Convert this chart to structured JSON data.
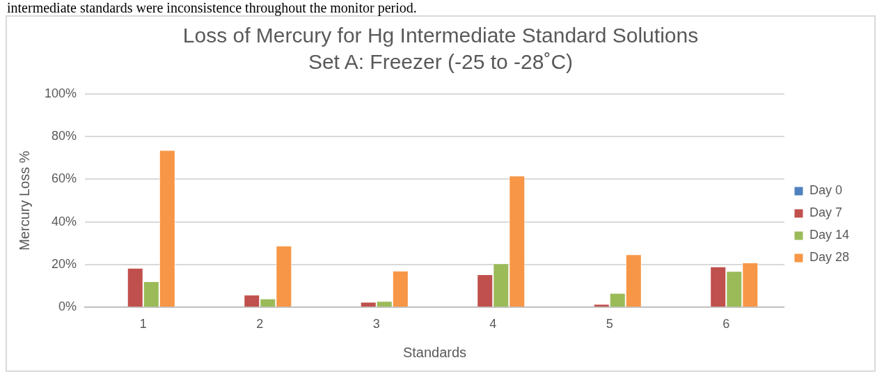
{
  "chart_data": {
    "type": "bar",
    "title": "Loss of Mercury for Hg Intermediate Standard Solutions Set A: Freezer (-25 to -28˚C)",
    "xlabel": "Standards",
    "ylabel": "Mercury Loss %",
    "annotations": [
      "intermediate standards were inconsistence throughout the monitor period."
    ],
    "categories": [
      "1",
      "2",
      "3",
      "4",
      "5",
      "6"
    ],
    "series": [
      {
        "name": "Day 0",
        "color": "#4f81bd",
        "values": [
          0,
          0,
          0,
          0,
          0,
          0
        ]
      },
      {
        "name": "Day 7",
        "color": "#c0504d",
        "values": [
          18.5,
          5.9,
          2.6,
          15.5,
          1.6,
          19.1
        ]
      },
      {
        "name": "Day 14",
        "color": "#9bbb59",
        "values": [
          12.2,
          4.1,
          3.0,
          20.6,
          6.7,
          17.0
        ]
      },
      {
        "name": "Day 28",
        "color": "#f79646",
        "values": [
          73.7,
          28.9,
          17.2,
          61.7,
          24.8,
          21.0
        ]
      }
    ],
    "ylim": [
      0,
      100
    ],
    "yticks": [
      {
        "value": 0,
        "label": "0%"
      },
      {
        "value": 20,
        "label": "20%"
      },
      {
        "value": 40,
        "label": "40%"
      },
      {
        "value": 60,
        "label": "60%"
      },
      {
        "value": 80,
        "label": "80%"
      },
      {
        "value": 100,
        "label": "100%"
      }
    ],
    "grid": "y",
    "legend": "right"
  }
}
